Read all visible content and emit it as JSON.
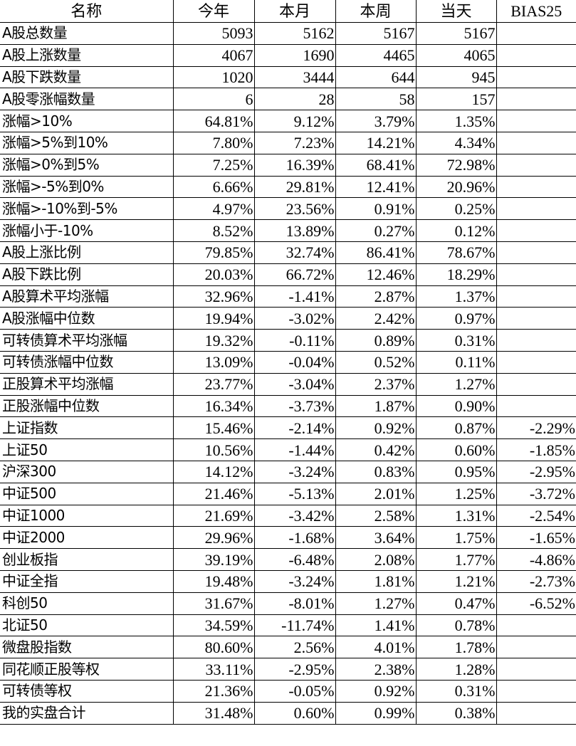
{
  "table": {
    "headers": [
      "名称",
      "今年",
      "本月",
      "本周",
      "当天",
      "BIAS25"
    ],
    "rows": [
      [
        "A股总数量",
        "5093",
        "5162",
        "5167",
        "5167",
        ""
      ],
      [
        "A股上涨数量",
        "4067",
        "1690",
        "4465",
        "4065",
        ""
      ],
      [
        "A股下跌数量",
        "1020",
        "3444",
        "644",
        "945",
        ""
      ],
      [
        "A股零涨幅数量",
        "6",
        "28",
        "58",
        "157",
        ""
      ],
      [
        "涨幅>10%",
        "64.81%",
        "9.12%",
        "3.79%",
        "1.35%",
        ""
      ],
      [
        "涨幅>5%到10%",
        "7.80%",
        "7.23%",
        "14.21%",
        "4.34%",
        ""
      ],
      [
        "涨幅>0%到5%",
        "7.25%",
        "16.39%",
        "68.41%",
        "72.98%",
        ""
      ],
      [
        "涨幅>-5%到0%",
        "6.66%",
        "29.81%",
        "12.41%",
        "20.96%",
        ""
      ],
      [
        "涨幅>-10%到-5%",
        "4.97%",
        "23.56%",
        "0.91%",
        "0.25%",
        ""
      ],
      [
        "涨幅小于-10%",
        "8.52%",
        "13.89%",
        "0.27%",
        "0.12%",
        ""
      ],
      [
        "A股上涨比例",
        "79.85%",
        "32.74%",
        "86.41%",
        "78.67%",
        ""
      ],
      [
        "A股下跌比例",
        "20.03%",
        "66.72%",
        "12.46%",
        "18.29%",
        ""
      ],
      [
        "A股算术平均涨幅",
        "32.96%",
        "-1.41%",
        "2.87%",
        "1.37%",
        ""
      ],
      [
        "A股涨幅中位数",
        "19.94%",
        "-3.02%",
        "2.42%",
        "0.97%",
        ""
      ],
      [
        "可转债算术平均涨幅",
        "19.32%",
        "-0.11%",
        "0.89%",
        "0.31%",
        ""
      ],
      [
        "可转债涨幅中位数",
        "13.09%",
        "-0.04%",
        "0.52%",
        "0.11%",
        ""
      ],
      [
        "正股算术平均涨幅",
        "23.77%",
        "-3.04%",
        "2.37%",
        "1.27%",
        ""
      ],
      [
        "正股涨幅中位数",
        "16.34%",
        "-3.73%",
        "1.87%",
        "0.90%",
        ""
      ],
      [
        "上证指数",
        "15.46%",
        "-2.14%",
        "0.92%",
        "0.87%",
        "-2.29%"
      ],
      [
        "上证50",
        "10.56%",
        "-1.44%",
        "0.42%",
        "0.60%",
        "-1.85%"
      ],
      [
        "沪深300",
        "14.12%",
        "-3.24%",
        "0.83%",
        "0.95%",
        "-2.95%"
      ],
      [
        "中证500",
        "21.46%",
        "-5.13%",
        "2.01%",
        "1.25%",
        "-3.72%"
      ],
      [
        "中证1000",
        "21.69%",
        "-3.42%",
        "2.58%",
        "1.31%",
        "-2.54%"
      ],
      [
        "中证2000",
        "29.96%",
        "-1.68%",
        "3.64%",
        "1.75%",
        "-1.65%"
      ],
      [
        "创业板指",
        "39.19%",
        "-6.48%",
        "2.08%",
        "1.77%",
        "-4.86%"
      ],
      [
        "中证全指",
        "19.48%",
        "-3.24%",
        "1.81%",
        "1.21%",
        "-2.73%"
      ],
      [
        "科创50",
        "31.67%",
        "-8.01%",
        "1.27%",
        "0.47%",
        "-6.52%"
      ],
      [
        "北证50",
        "34.59%",
        "-11.74%",
        "1.41%",
        "0.78%",
        ""
      ],
      [
        "微盘股指数",
        "80.60%",
        "2.56%",
        "4.01%",
        "1.78%",
        ""
      ],
      [
        "同花顺正股等权",
        "33.11%",
        "-2.95%",
        "2.38%",
        "1.28%",
        ""
      ],
      [
        "可转债等权",
        "21.36%",
        "-0.05%",
        "0.92%",
        "0.31%",
        ""
      ],
      [
        "我的实盘合计",
        "31.48%",
        "0.60%",
        "0.99%",
        "0.38%",
        ""
      ]
    ]
  }
}
